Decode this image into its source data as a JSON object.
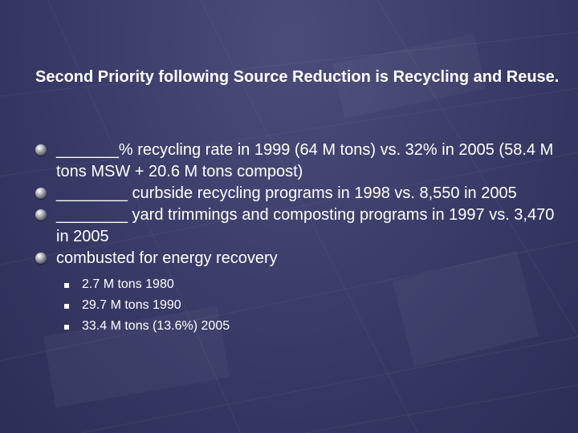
{
  "slide": {
    "heading": "Second Priority following Source Reduction is Recycling and Reuse.",
    "bullets": [
      {
        "text": "_______% recycling rate in 1999 (64 M tons) vs. 32% in 2005 (58.4 M tons MSW + 20.6 M tons compost)"
      },
      {
        "text": "________ curbside recycling programs in 1998 vs. 8,550 in 2005"
      },
      {
        "text": "________ yard trimmings and composting programs in 1997  vs. 3,470 in 2005"
      },
      {
        "text": "combusted for energy recovery"
      }
    ],
    "sub_bullets": [
      {
        "text": "2.7 M tons 1980"
      },
      {
        "text": "29.7 M tons 1990"
      },
      {
        "text": "33.4 M tons (13.6%) 2005"
      }
    ]
  },
  "colors": {
    "background": "#3b3d6a",
    "text": "#ffffff"
  }
}
